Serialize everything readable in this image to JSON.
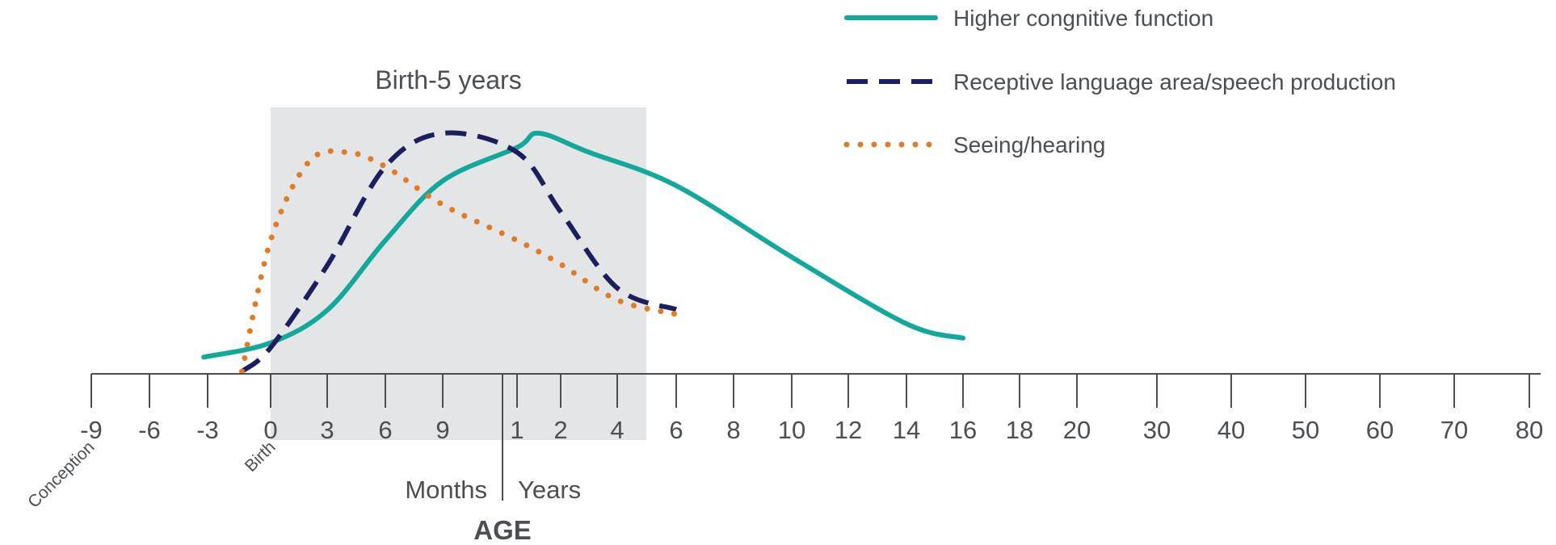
{
  "chart_data": {
    "type": "line",
    "title": "",
    "xlabel": "AGE",
    "ylabel": "",
    "y_axis_shown": false,
    "x_axis_scale": "non-linear (months before 1 year, years after)",
    "x_unit_labels": {
      "left": "Months",
      "right": "Years"
    },
    "x_ticks": [
      {
        "label": "-9"
      },
      {
        "label": "-6"
      },
      {
        "label": "-3"
      },
      {
        "label": "0"
      },
      {
        "label": "3"
      },
      {
        "label": "6"
      },
      {
        "label": "9"
      },
      {
        "label": "1"
      },
      {
        "label": "2"
      },
      {
        "label": "4"
      },
      {
        "label": "6"
      },
      {
        "label": "8"
      },
      {
        "label": "10"
      },
      {
        "label": "12"
      },
      {
        "label": "14"
      },
      {
        "label": "16"
      },
      {
        "label": "18"
      },
      {
        "label": "20"
      },
      {
        "label": "30"
      },
      {
        "label": "40"
      },
      {
        "label": "50"
      },
      {
        "label": "60"
      },
      {
        "label": "70"
      },
      {
        "label": "80"
      }
    ],
    "x_annotations": {
      "conception": "Conception",
      "birth": "Birth"
    },
    "highlight_region": {
      "label": "Birth-5 years",
      "from": "0 months",
      "to": "5 years",
      "color": "#e3e5e7"
    },
    "legend_position": "top-right",
    "series": [
      {
        "name": "Higher congnitive function",
        "style": "solid",
        "color": "#12a89a",
        "points": [
          {
            "x": -3.5,
            "y": 0.06
          },
          {
            "x": 0,
            "y": 0.12
          },
          {
            "x": 3,
            "y": 0.26
          },
          {
            "x": 6,
            "y": 0.55
          },
          {
            "x": 9,
            "y": 0.8
          },
          {
            "x": "1y",
            "y": 0.94
          },
          {
            "x": "1.5y",
            "y": 1.0
          },
          {
            "x": "3y",
            "y": 0.92
          },
          {
            "x": "6y",
            "y": 0.78
          },
          {
            "x": "10y",
            "y": 0.48
          },
          {
            "x": "14y",
            "y": 0.2
          },
          {
            "x": "16y",
            "y": 0.14
          }
        ]
      },
      {
        "name": "Receptive language area/speech production",
        "style": "dashed",
        "color": "#1c1f5e",
        "points": [
          {
            "x": -1.5,
            "y": 0.0
          },
          {
            "x": 0,
            "y": 0.1
          },
          {
            "x": 3,
            "y": 0.45
          },
          {
            "x": 6,
            "y": 0.86
          },
          {
            "x": 9,
            "y": 1.0
          },
          {
            "x": "1y",
            "y": 0.92
          },
          {
            "x": "2y",
            "y": 0.67
          },
          {
            "x": "4y",
            "y": 0.35
          },
          {
            "x": "6y",
            "y": 0.26
          }
        ]
      },
      {
        "name": "Seeing/hearing",
        "style": "dotted",
        "color": "#e07b27",
        "points": [
          {
            "x": -1.5,
            "y": 0.0
          },
          {
            "x": 0,
            "y": 0.55
          },
          {
            "x": 2,
            "y": 0.88
          },
          {
            "x": 4,
            "y": 0.92
          },
          {
            "x": 6,
            "y": 0.86
          },
          {
            "x": 9,
            "y": 0.7
          },
          {
            "x": "1y",
            "y": 0.55
          },
          {
            "x": "2y",
            "y": 0.45
          },
          {
            "x": "4y",
            "y": 0.3
          },
          {
            "x": "6y",
            "y": 0.24
          }
        ]
      }
    ]
  }
}
